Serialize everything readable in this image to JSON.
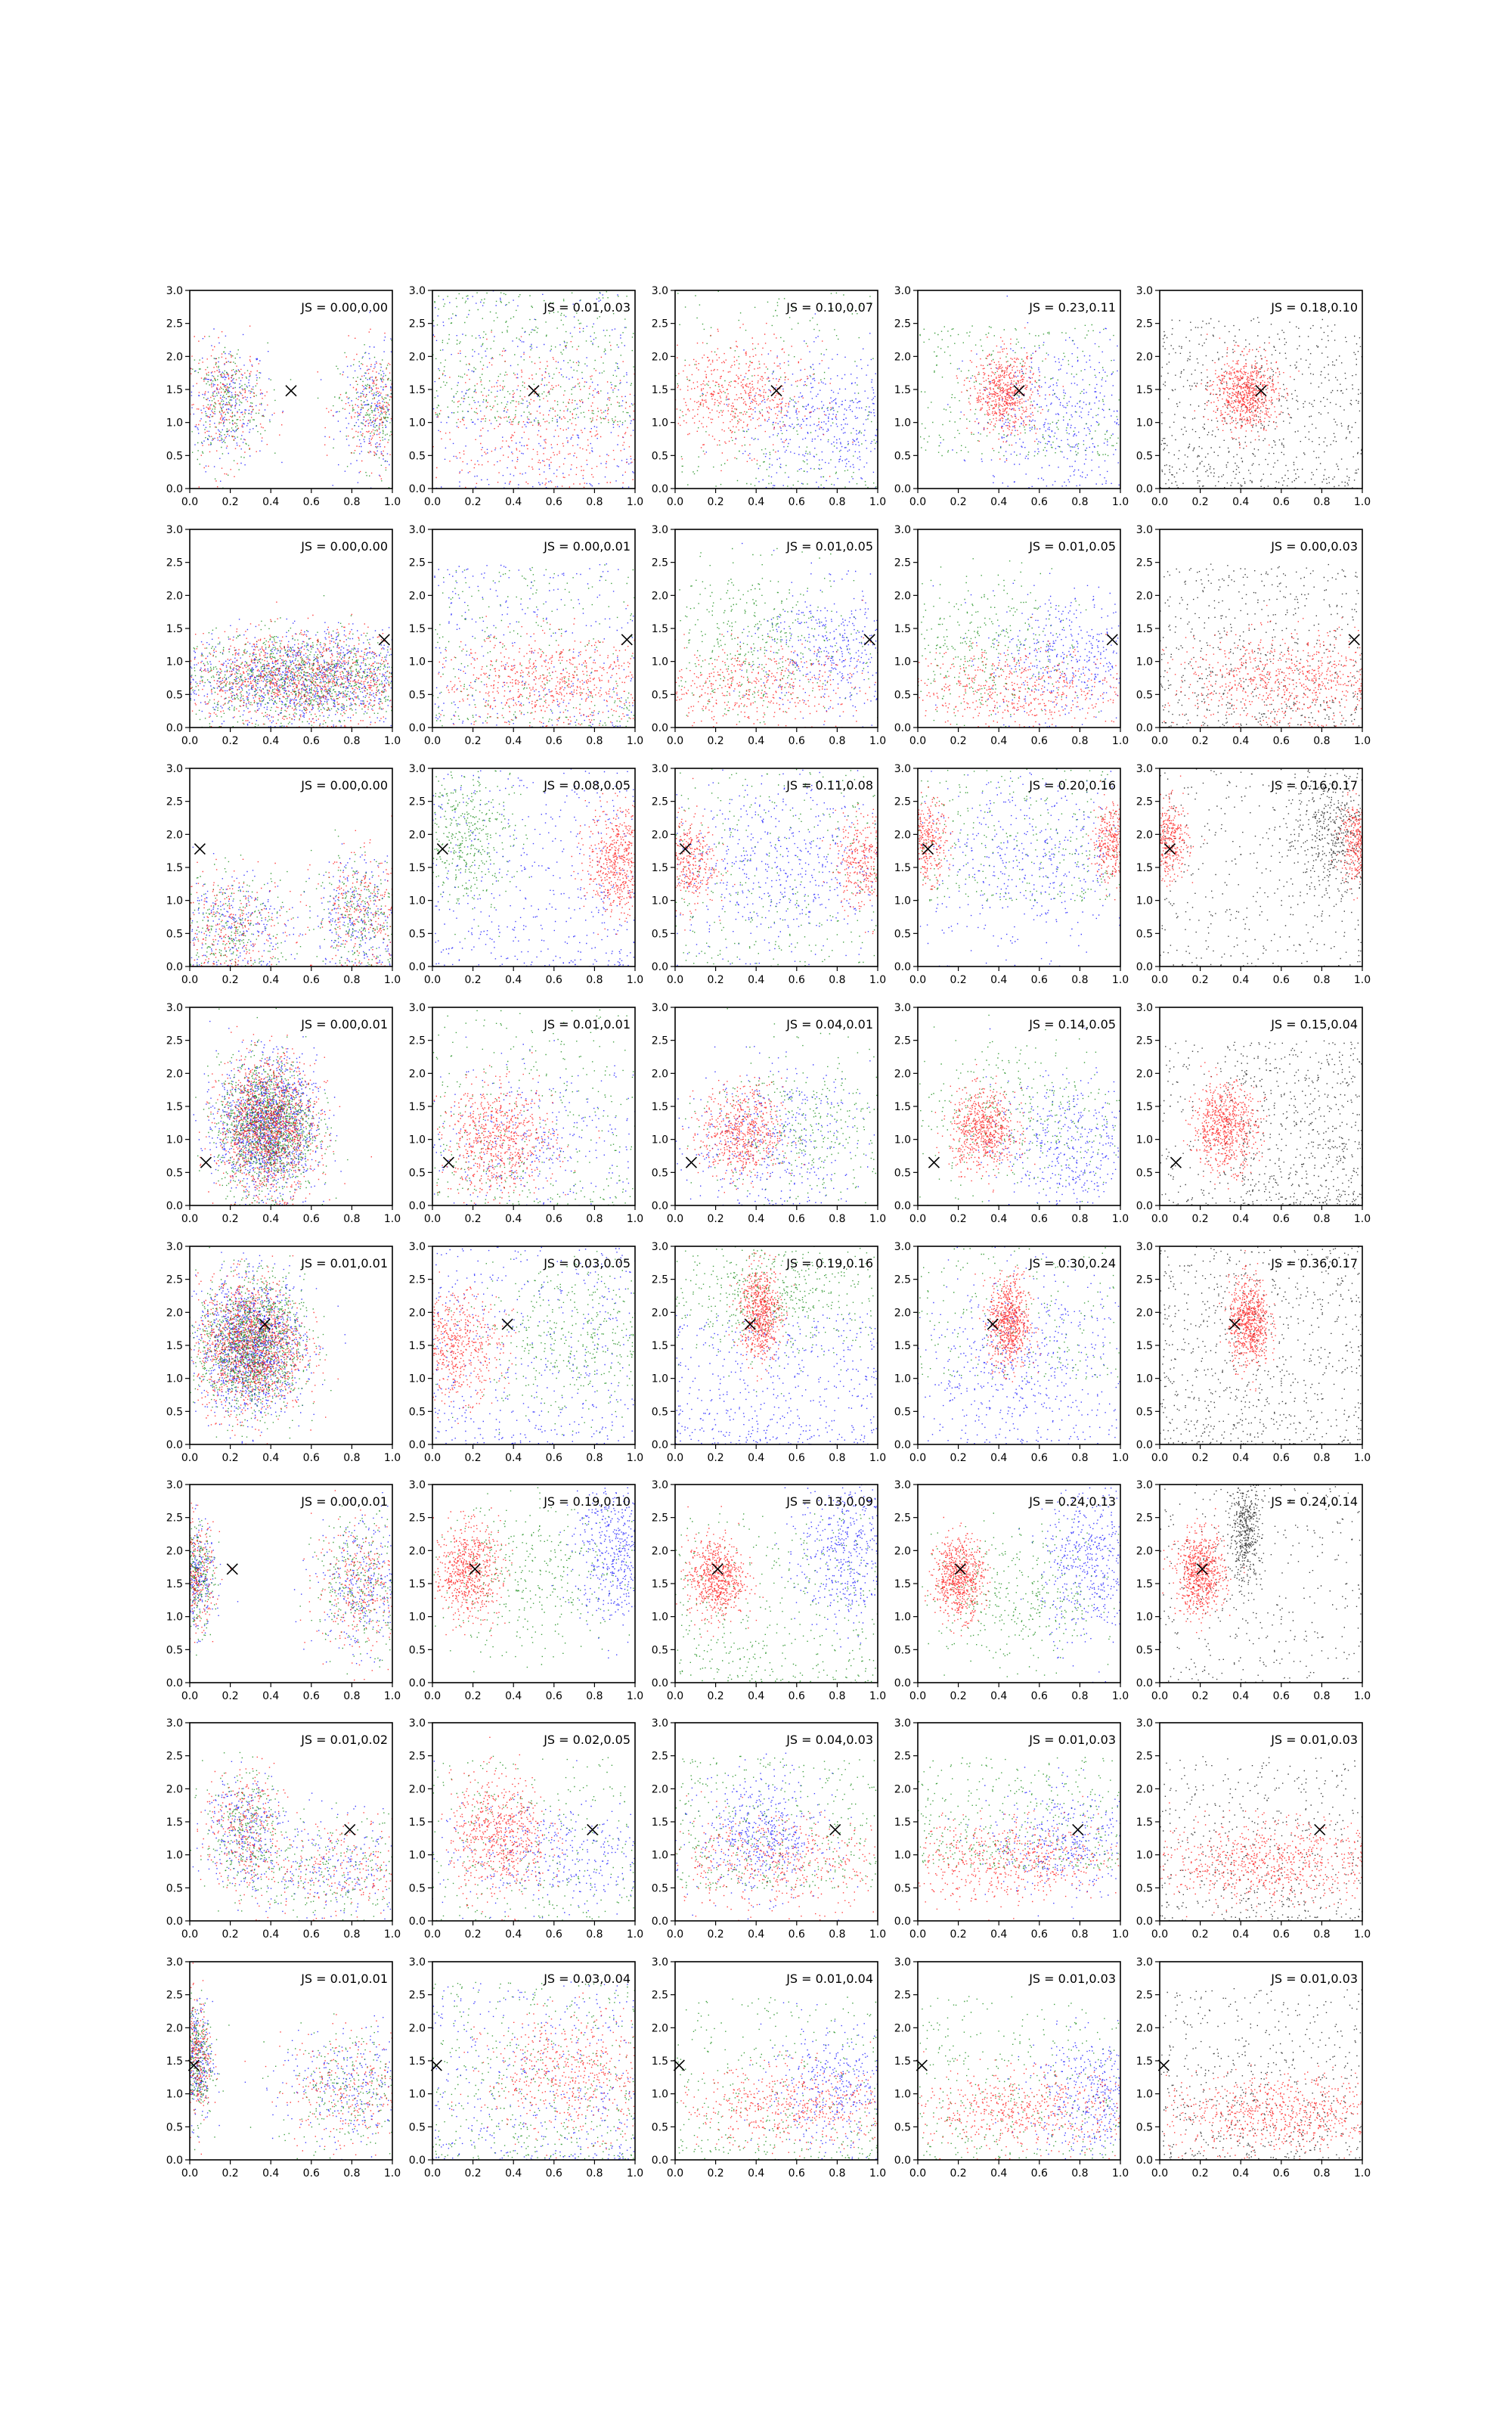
{
  "chart_data": {
    "type": "scatter",
    "grid": false,
    "xlim": [
      0,
      1
    ],
    "ylim": [
      0,
      3
    ],
    "x_ticks": [
      "0.0",
      "0.2",
      "0.4",
      "0.6",
      "0.8",
      "1.0"
    ],
    "y_ticks": [
      "0.0",
      "0.5",
      "1.0",
      "1.5",
      "2.0",
      "2.5",
      "3.0"
    ],
    "rows": 8,
    "cols": 5,
    "point_colors": {
      "blue": "#0000ff",
      "green": "#008000",
      "red": "#ff0000",
      "black": "#000000"
    },
    "panels_description": "Each row shares one marked point (x). Columns 1-4 show mixed red/green/blue samples; column 5 shows red target samples over black samples.",
    "rows_data": [
      {
        "marker": [
          0.5,
          1.48
        ],
        "annotations": [
          "JS = 0.00,0.00",
          "JS = 0.01,0.03",
          "JS = 0.10,0.07",
          "JS = 0.23,0.11",
          "JS = 0.18,0.10"
        ]
      },
      {
        "marker": [
          0.96,
          1.33
        ],
        "annotations": [
          "JS = 0.00,0.00",
          "JS = 0.00,0.01",
          "JS = 0.01,0.05",
          "JS = 0.01,0.05",
          "JS = 0.00,0.03"
        ]
      },
      {
        "marker": [
          0.05,
          1.78
        ],
        "annotations": [
          "JS = 0.00,0.00",
          "JS = 0.08,0.05",
          "JS = 0.11,0.08",
          "JS = 0.20,0.16",
          "JS = 0.16,0.17"
        ]
      },
      {
        "marker": [
          0.08,
          0.65
        ],
        "annotations": [
          "JS = 0.00,0.01",
          "JS = 0.01,0.01",
          "JS = 0.04,0.01",
          "JS = 0.14,0.05",
          "JS = 0.15,0.04"
        ]
      },
      {
        "marker": [
          0.37,
          1.82
        ],
        "annotations": [
          "JS = 0.01,0.01",
          "JS = 0.03,0.05",
          "JS = 0.19,0.16",
          "JS = 0.30,0.24",
          "JS = 0.36,0.17"
        ]
      },
      {
        "marker": [
          0.21,
          1.72
        ],
        "annotations": [
          "JS = 0.00,0.01",
          "JS = 0.19,0.10",
          "JS = 0.13,0.09",
          "JS = 0.24,0.13",
          "JS = 0.24,0.14"
        ]
      },
      {
        "marker": [
          0.79,
          1.38
        ],
        "annotations": [
          "JS = 0.01,0.02",
          "JS = 0.02,0.05",
          "JS = 0.04,0.03",
          "JS = 0.01,0.03",
          "JS = 0.01,0.03"
        ]
      },
      {
        "marker": [
          0.02,
          1.43
        ],
        "annotations": [
          "JS = 0.01,0.01",
          "JS = 0.03,0.04",
          "JS = 0.01,0.04",
          "JS = 0.01,0.03",
          "JS = 0.01,0.03"
        ]
      }
    ]
  }
}
